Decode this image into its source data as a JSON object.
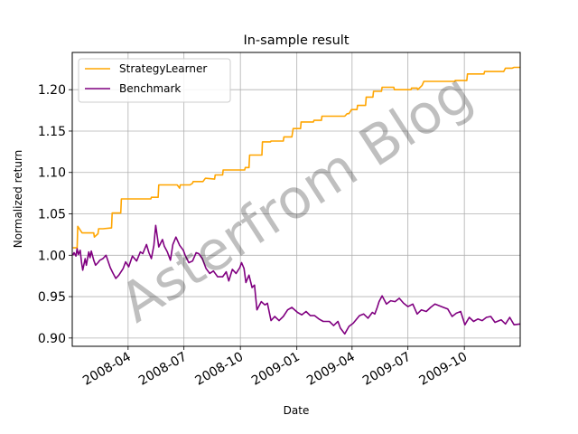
{
  "chart_data": {
    "type": "line",
    "title": "In-sample result",
    "xlabel": "Date",
    "ylabel": "Normalized return",
    "xlim": [
      "2008-01-01",
      "2009-12-31"
    ],
    "ylim": [
      0.89,
      1.245
    ],
    "grid": true,
    "legend_position": "top-left",
    "watermark": "Asterfrom Blog",
    "x_ticks": [
      {
        "label": "2008-04",
        "date": "2008-04-01"
      },
      {
        "label": "2008-07",
        "date": "2008-07-01"
      },
      {
        "label": "2008-10",
        "date": "2008-10-01"
      },
      {
        "label": "2009-01",
        "date": "2009-01-01"
      },
      {
        "label": "2009-04",
        "date": "2009-04-01"
      },
      {
        "label": "2009-07",
        "date": "2009-07-01"
      },
      {
        "label": "2009-10",
        "date": "2009-10-01"
      }
    ],
    "y_ticks": [
      {
        "label": "0.90",
        "value": 0.9
      },
      {
        "label": "0.95",
        "value": 0.95
      },
      {
        "label": "1.00",
        "value": 1.0
      },
      {
        "label": "1.05",
        "value": 1.05
      },
      {
        "label": "1.10",
        "value": 1.1
      },
      {
        "label": "1.15",
        "value": 1.15
      },
      {
        "label": "1.20",
        "value": 1.2
      }
    ],
    "series": [
      {
        "name": "StrategyLearner",
        "color": "#ffa500",
        "x": [
          "2008-01-02",
          "2008-01-09",
          "2008-01-10",
          "2008-01-17",
          "2008-01-18",
          "2008-02-05",
          "2008-02-06",
          "2008-02-12",
          "2008-02-13",
          "2008-02-20",
          "2008-03-05",
          "2008-03-06",
          "2008-03-20",
          "2008-03-21",
          "2008-04-01",
          "2008-04-02",
          "2008-05-08",
          "2008-05-09",
          "2008-05-20",
          "2008-05-21",
          "2008-06-10",
          "2008-06-11",
          "2008-06-20",
          "2008-06-24",
          "2008-06-25",
          "2008-07-10",
          "2008-07-11",
          "2008-07-15",
          "2008-07-16",
          "2008-07-30",
          "2008-08-01",
          "2008-08-05",
          "2008-08-06",
          "2008-08-20",
          "2008-08-21",
          "2008-09-02",
          "2008-09-03",
          "2008-09-25",
          "2008-09-26",
          "2008-10-08",
          "2008-10-09",
          "2008-10-15",
          "2008-10-16",
          "2008-11-05",
          "2008-11-06",
          "2008-11-19",
          "2008-11-20",
          "2008-12-10",
          "2008-12-11",
          "2008-12-24",
          "2008-12-26",
          "2009-01-07",
          "2009-01-08",
          "2009-01-28",
          "2009-01-29",
          "2009-02-10",
          "2009-02-11",
          "2009-03-05",
          "2009-03-06",
          "2009-03-20",
          "2009-03-24",
          "2009-03-27",
          "2009-03-31",
          "2009-04-09",
          "2009-04-10",
          "2009-04-23",
          "2009-04-24",
          "2009-05-05",
          "2009-05-06",
          "2009-05-19",
          "2009-05-20",
          "2009-05-21",
          "2009-06-08",
          "2009-06-09",
          "2009-06-25",
          "2009-06-26",
          "2009-07-06",
          "2009-07-07",
          "2009-07-16",
          "2009-07-17",
          "2009-07-24",
          "2009-07-27",
          "2009-09-15",
          "2009-09-16",
          "2009-09-30",
          "2009-10-01",
          "2009-10-05",
          "2009-10-06",
          "2009-10-23",
          "2009-10-26",
          "2009-11-02",
          "2009-11-03",
          "2009-11-20",
          "2009-11-23",
          "2009-12-04",
          "2009-12-07",
          "2009-12-18",
          "2009-12-21",
          "2009-12-31"
        ],
        "values": [
          1.009,
          1.009,
          1.035,
          1.027,
          1.027,
          1.027,
          1.022,
          1.026,
          1.032,
          1.032,
          1.033,
          1.051,
          1.051,
          1.068,
          1.068,
          1.068,
          1.068,
          1.07,
          1.07,
          1.085,
          1.085,
          1.085,
          1.085,
          1.081,
          1.085,
          1.085,
          1.085,
          1.087,
          1.089,
          1.089,
          1.089,
          1.093,
          1.093,
          1.092,
          1.097,
          1.097,
          1.103,
          1.103,
          1.103,
          1.103,
          1.106,
          1.106,
          1.121,
          1.121,
          1.137,
          1.137,
          1.138,
          1.138,
          1.143,
          1.143,
          1.153,
          1.153,
          1.161,
          1.161,
          1.163,
          1.163,
          1.168,
          1.168,
          1.168,
          1.168,
          1.171,
          1.171,
          1.176,
          1.176,
          1.181,
          1.181,
          1.191,
          1.191,
          1.198,
          1.198,
          1.203,
          1.203,
          1.203,
          1.2,
          1.2,
          1.2,
          1.2,
          1.202,
          1.202,
          1.2,
          1.205,
          1.21,
          1.21,
          1.211,
          1.211,
          1.211,
          1.211,
          1.219,
          1.219,
          1.219,
          1.219,
          1.222,
          1.222,
          1.222,
          1.222,
          1.226,
          1.226,
          1.227,
          1.227
        ]
      },
      {
        "name": "Benchmark",
        "color": "#800080",
        "x": [
          "2008-01-02",
          "2008-01-04",
          "2008-01-07",
          "2008-01-09",
          "2008-01-11",
          "2008-01-14",
          "2008-01-16",
          "2008-01-18",
          "2008-01-22",
          "2008-01-24",
          "2008-01-28",
          "2008-01-30",
          "2008-02-01",
          "2008-02-05",
          "2008-02-08",
          "2008-02-12",
          "2008-02-15",
          "2008-02-20",
          "2008-02-25",
          "2008-03-03",
          "2008-03-07",
          "2008-03-12",
          "2008-03-17",
          "2008-03-24",
          "2008-03-28",
          "2008-04-02",
          "2008-04-08",
          "2008-04-15",
          "2008-04-21",
          "2008-04-25",
          "2008-05-01",
          "2008-05-05",
          "2008-05-09",
          "2008-05-13",
          "2008-05-16",
          "2008-05-21",
          "2008-05-27",
          "2008-05-30",
          "2008-06-04",
          "2008-06-09",
          "2008-06-13",
          "2008-06-18",
          "2008-06-24",
          "2008-06-30",
          "2008-07-03",
          "2008-07-09",
          "2008-07-15",
          "2008-07-21",
          "2008-07-25",
          "2008-07-31",
          "2008-08-06",
          "2008-08-12",
          "2008-08-18",
          "2008-08-25",
          "2008-09-02",
          "2008-09-08",
          "2008-09-12",
          "2008-09-18",
          "2008-09-24",
          "2008-09-30",
          "2008-10-03",
          "2008-10-07",
          "2008-10-10",
          "2008-10-15",
          "2008-10-20",
          "2008-10-24",
          "2008-10-28",
          "2008-11-04",
          "2008-11-10",
          "2008-11-14",
          "2008-11-20",
          "2008-11-26",
          "2008-12-03",
          "2008-12-10",
          "2008-12-17",
          "2008-12-24",
          "2009-01-02",
          "2009-01-09",
          "2009-01-16",
          "2009-01-23",
          "2009-01-30",
          "2009-02-06",
          "2009-02-13",
          "2009-02-23",
          "2009-03-02",
          "2009-03-09",
          "2009-03-13",
          "2009-03-20",
          "2009-03-27",
          "2009-04-03",
          "2009-04-13",
          "2009-04-20",
          "2009-04-27",
          "2009-05-04",
          "2009-05-08",
          "2009-05-12",
          "2009-05-15",
          "2009-05-20",
          "2009-05-27",
          "2009-06-03",
          "2009-06-10",
          "2009-06-17",
          "2009-06-24",
          "2009-07-01",
          "2009-07-09",
          "2009-07-16",
          "2009-07-23",
          "2009-07-31",
          "2009-08-07",
          "2009-08-14",
          "2009-08-21",
          "2009-08-28",
          "2009-09-04",
          "2009-09-11",
          "2009-09-18",
          "2009-09-25",
          "2009-10-02",
          "2009-10-09",
          "2009-10-16",
          "2009-10-23",
          "2009-10-30",
          "2009-11-06",
          "2009-11-13",
          "2009-11-20",
          "2009-11-30",
          "2009-12-07",
          "2009-12-14",
          "2009-12-21",
          "2009-12-31"
        ],
        "values": [
          1.0,
          1.003,
          0.999,
          1.008,
          1.001,
          1.006,
          0.992,
          0.982,
          0.996,
          0.988,
          1.004,
          0.997,
          1.005,
          0.994,
          0.988,
          0.991,
          0.994,
          0.996,
          1.0,
          0.985,
          0.979,
          0.972,
          0.976,
          0.984,
          0.992,
          0.986,
          0.999,
          0.993,
          1.004,
          1.002,
          1.013,
          1.003,
          0.996,
          1.012,
          1.036,
          1.01,
          1.019,
          1.011,
          1.004,
          0.994,
          1.013,
          1.022,
          1.012,
          1.006,
          1.0,
          0.991,
          0.993,
          1.003,
          1.002,
          0.996,
          0.984,
          0.978,
          0.981,
          0.974,
          0.974,
          0.98,
          0.969,
          0.983,
          0.978,
          0.985,
          0.991,
          0.984,
          0.967,
          0.976,
          0.961,
          0.964,
          0.934,
          0.944,
          0.94,
          0.942,
          0.921,
          0.926,
          0.921,
          0.926,
          0.934,
          0.937,
          0.931,
          0.928,
          0.932,
          0.927,
          0.927,
          0.923,
          0.92,
          0.92,
          0.915,
          0.92,
          0.912,
          0.905,
          0.914,
          0.918,
          0.927,
          0.929,
          0.924,
          0.931,
          0.929,
          0.937,
          0.944,
          0.951,
          0.941,
          0.945,
          0.944,
          0.948,
          0.942,
          0.938,
          0.941,
          0.929,
          0.934,
          0.932,
          0.937,
          0.941,
          0.939,
          0.937,
          0.935,
          0.926,
          0.93,
          0.932,
          0.916,
          0.925,
          0.92,
          0.923,
          0.921,
          0.925,
          0.926,
          0.919,
          0.922,
          0.917,
          0.925,
          0.916,
          0.917
        ]
      }
    ]
  }
}
